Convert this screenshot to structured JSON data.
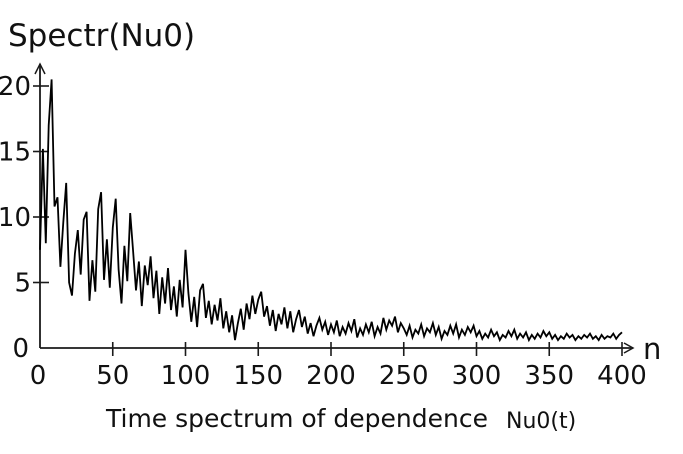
{
  "figure": {
    "title": "Spectr(Nu0)",
    "caption": {
      "text": "Time spectrum of dependence",
      "formula": "Nu0(t)"
    }
  },
  "colors": {
    "line": "#000000",
    "axis": "#1a1a1a",
    "text": "#111111",
    "background": "#ffffff"
  },
  "chart_data": {
    "type": "line",
    "title": "Spectr(Nu0)",
    "xlabel": "n",
    "ylabel": "Spectr(Nu0)",
    "caption": "Time spectrum of dependence Nu0(t)",
    "xlim": [
      0,
      420
    ],
    "ylim": [
      0,
      21
    ],
    "x_ticks": [
      0,
      50,
      100,
      150,
      200,
      250,
      300,
      350,
      400
    ],
    "y_ticks": [
      0,
      5,
      10,
      15,
      20
    ],
    "grid": false,
    "legend": false,
    "line_color": "#000000",
    "x": [
      0,
      2,
      4,
      6,
      8,
      10,
      12,
      14,
      16,
      18,
      20,
      22,
      24,
      26,
      28,
      30,
      32,
      34,
      36,
      38,
      40,
      42,
      44,
      46,
      48,
      50,
      52,
      54,
      56,
      58,
      60,
      62,
      64,
      66,
      68,
      70,
      72,
      74,
      76,
      78,
      80,
      82,
      84,
      86,
      88,
      90,
      92,
      94,
      96,
      98,
      100,
      102,
      104,
      106,
      108,
      110,
      112,
      114,
      116,
      118,
      120,
      122,
      124,
      126,
      128,
      130,
      132,
      134,
      136,
      138,
      140,
      142,
      144,
      146,
      148,
      150,
      152,
      154,
      156,
      158,
      160,
      162,
      164,
      166,
      168,
      170,
      172,
      174,
      176,
      178,
      180,
      182,
      184,
      186,
      188,
      190,
      192,
      194,
      196,
      198,
      200,
      202,
      204,
      206,
      208,
      210,
      212,
      214,
      216,
      218,
      220,
      222,
      224,
      226,
      228,
      230,
      232,
      234,
      236,
      238,
      240,
      242,
      244,
      246,
      248,
      250,
      252,
      254,
      256,
      258,
      260,
      262,
      264,
      266,
      268,
      270,
      272,
      274,
      276,
      278,
      280,
      282,
      284,
      286,
      288,
      290,
      292,
      294,
      296,
      298,
      300,
      302,
      304,
      306,
      308,
      310,
      312,
      314,
      316,
      318,
      320,
      322,
      324,
      326,
      328,
      330,
      332,
      334,
      336,
      338,
      340,
      342,
      344,
      346,
      348,
      350,
      352,
      354,
      356,
      358,
      360,
      362,
      364,
      366,
      368,
      370,
      372,
      374,
      376,
      378,
      380,
      382,
      384,
      386,
      388,
      390,
      392,
      394,
      396,
      398,
      400
    ],
    "y": [
      7.5,
      15.2,
      8.0,
      17.0,
      20.5,
      10.8,
      11.5,
      6.2,
      9.6,
      12.6,
      5.0,
      4.0,
      7.2,
      9.0,
      5.6,
      9.8,
      10.4,
      3.6,
      6.7,
      4.3,
      10.6,
      11.9,
      5.2,
      8.3,
      4.6,
      9.2,
      11.4,
      6.0,
      3.4,
      7.8,
      5.1,
      10.3,
      7.4,
      4.4,
      6.6,
      3.2,
      6.3,
      4.8,
      7.0,
      3.8,
      5.9,
      2.6,
      5.4,
      3.4,
      6.1,
      2.9,
      4.7,
      2.4,
      5.2,
      3.1,
      7.5,
      4.2,
      2.0,
      3.9,
      1.6,
      4.4,
      4.9,
      2.3,
      3.6,
      1.8,
      3.3,
      2.1,
      3.8,
      1.5,
      2.8,
      1.2,
      2.5,
      0.6,
      1.9,
      3.0,
      1.4,
      3.4,
      2.2,
      4.0,
      2.6,
      3.7,
      4.3,
      2.4,
      3.2,
      1.7,
      2.9,
      1.3,
      2.6,
      1.8,
      3.1,
      1.5,
      2.8,
      1.2,
      2.2,
      2.9,
      1.6,
      2.4,
      1.1,
      1.9,
      0.9,
      1.7,
      2.3,
      1.4,
      2.0,
      1.0,
      1.8,
      1.2,
      2.1,
      0.9,
      1.6,
      1.1,
      1.9,
      1.3,
      2.2,
      0.8,
      1.5,
      1.0,
      1.8,
      1.2,
      2.0,
      0.9,
      1.6,
      1.1,
      2.3,
      1.4,
      2.1,
      1.7,
      2.4,
      1.2,
      1.9,
      1.5,
      1.0,
      1.7,
      0.8,
      1.4,
      1.1,
      1.8,
      0.9,
      1.5,
      1.2,
      1.9,
      1.0,
      1.6,
      0.7,
      1.3,
      1.0,
      1.7,
      1.1,
      1.8,
      0.8,
      1.4,
      1.0,
      1.6,
      1.2,
      1.7,
      0.9,
      1.3,
      0.7,
      1.1,
      0.8,
      1.4,
      0.9,
      1.2,
      0.6,
      1.0,
      0.8,
      1.3,
      0.9,
      1.4,
      0.7,
      1.1,
      0.8,
      1.2,
      0.6,
      1.0,
      0.7,
      1.1,
      0.8,
      1.3,
      0.9,
      1.2,
      0.7,
      1.0,
      0.6,
      0.9,
      0.7,
      1.1,
      0.8,
      1.0,
      0.6,
      0.9,
      0.7,
      1.0,
      0.8,
      1.1,
      0.7,
      0.9,
      0.6,
      1.0,
      0.7,
      0.9,
      0.8,
      1.1,
      0.7,
      1.0,
      1.2
    ]
  }
}
